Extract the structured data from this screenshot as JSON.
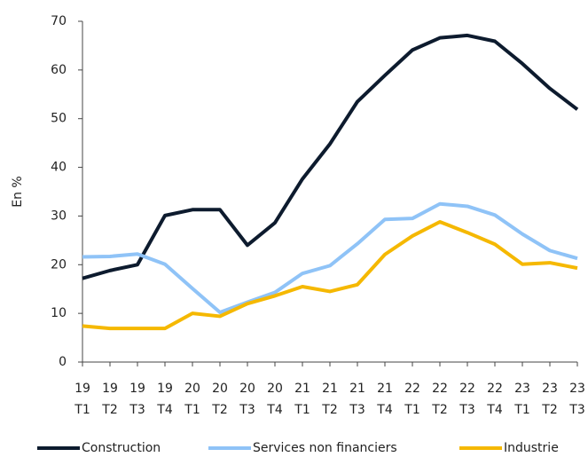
{
  "chart_data": {
    "type": "line",
    "y_label": "En %",
    "categories": [
      [
        "19",
        "T1"
      ],
      [
        "19",
        "T2"
      ],
      [
        "19",
        "T3"
      ],
      [
        "19",
        "T4"
      ],
      [
        "20",
        "T1"
      ],
      [
        "20",
        "T2"
      ],
      [
        "20",
        "T3"
      ],
      [
        "20",
        "T4"
      ],
      [
        "21",
        "T1"
      ],
      [
        "21",
        "T2"
      ],
      [
        "21",
        "T3"
      ],
      [
        "21",
        "T4"
      ],
      [
        "22",
        "T1"
      ],
      [
        "22",
        "T2"
      ],
      [
        "22",
        "T3"
      ],
      [
        "22",
        "T4"
      ],
      [
        "23",
        "T1"
      ],
      [
        "23",
        "T2"
      ],
      [
        "23",
        "T3"
      ]
    ],
    "series": [
      {
        "name": "Construction",
        "color": "#0d1b2e",
        "values": [
          17.2,
          18.8,
          20,
          30.1,
          31.3,
          31.3,
          24,
          28.6,
          37.6,
          44.8,
          53.5,
          58.9,
          64.1,
          66.6,
          67.1,
          65.9,
          61.3,
          56.2,
          51.9
        ]
      },
      {
        "name": "Services non financiers",
        "color": "#8fc3f7",
        "values": [
          21.6,
          21.7,
          22.2,
          20.1,
          15.1,
          10.2,
          12.3,
          14.3,
          18.2,
          19.8,
          24.3,
          29.3,
          29.5,
          32.5,
          32,
          30.2,
          26.3,
          22.9,
          21.3
        ]
      },
      {
        "name": "Industrie",
        "color": "#f5b800",
        "values": [
          7.4,
          6.9,
          6.9,
          6.9,
          10,
          9.4,
          12,
          13.6,
          15.5,
          14.5,
          15.9,
          22.1,
          25.9,
          28.8,
          26.6,
          24.2,
          20.1,
          20.4,
          19.3
        ]
      }
    ],
    "ylim": [
      0,
      70
    ],
    "yticks": [
      0,
      10,
      20,
      30,
      40,
      50,
      60,
      70
    ],
    "grid": false,
    "legend": "bottom"
  }
}
